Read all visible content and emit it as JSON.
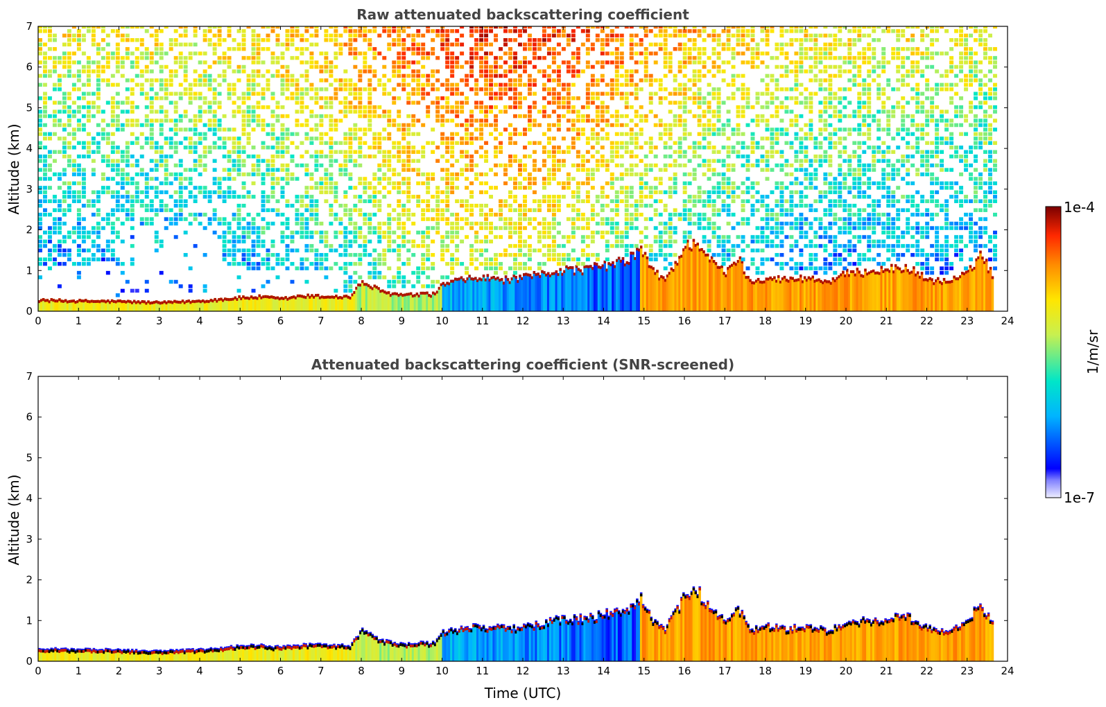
{
  "chart_data": [
    {
      "type": "heatmap",
      "title": "Raw attenuated backscattering coefficient",
      "xlabel": "",
      "ylabel": "Altitude (km)",
      "xlim": [
        0,
        24
      ],
      "ylim": [
        0,
        7
      ],
      "xticks": [
        "0",
        "1",
        "2",
        "3",
        "4",
        "5",
        "6",
        "7",
        "8",
        "9",
        "10",
        "11",
        "12",
        "13",
        "14",
        "15",
        "16",
        "17",
        "18",
        "19",
        "20",
        "21",
        "22",
        "23",
        "24"
      ],
      "yticks": [
        "0",
        "1",
        "2",
        "3",
        "4",
        "5",
        "6",
        "7"
      ],
      "data_end_hour": 23.65,
      "boundary_layer_top_km": [
        {
          "t": 0,
          "z": 0.3
        },
        {
          "t": 1,
          "z": 0.28
        },
        {
          "t": 2,
          "z": 0.27
        },
        {
          "t": 3,
          "z": 0.24
        },
        {
          "t": 4,
          "z": 0.28
        },
        {
          "t": 5,
          "z": 0.36
        },
        {
          "t": 5.5,
          "z": 0.38
        },
        {
          "t": 6,
          "z": 0.33
        },
        {
          "t": 6.5,
          "z": 0.4
        },
        {
          "t": 7.7,
          "z": 0.38
        },
        {
          "t": 8,
          "z": 0.75
        },
        {
          "t": 8.5,
          "z": 0.5
        },
        {
          "t": 9,
          "z": 0.42
        },
        {
          "t": 9.8,
          "z": 0.45
        },
        {
          "t": 10,
          "z": 0.7
        },
        {
          "t": 10.5,
          "z": 0.8
        },
        {
          "t": 11,
          "z": 0.85
        },
        {
          "t": 11.5,
          "z": 0.8
        },
        {
          "t": 12,
          "z": 0.85
        },
        {
          "t": 12.5,
          "z": 0.95
        },
        {
          "t": 13,
          "z": 1.05
        },
        {
          "t": 13.5,
          "z": 1.05
        },
        {
          "t": 14,
          "z": 1.15
        },
        {
          "t": 14.5,
          "z": 1.25
        },
        {
          "t": 14.9,
          "z": 1.55
        },
        {
          "t": 15.2,
          "z": 1.0
        },
        {
          "t": 15.5,
          "z": 0.8
        },
        {
          "t": 16,
          "z": 1.6
        },
        {
          "t": 16.3,
          "z": 1.75
        },
        {
          "t": 16.6,
          "z": 1.3
        },
        {
          "t": 17,
          "z": 0.95
        },
        {
          "t": 17.3,
          "z": 1.35
        },
        {
          "t": 17.6,
          "z": 0.75
        },
        {
          "t": 18,
          "z": 0.85
        },
        {
          "t": 18.5,
          "z": 0.8
        },
        {
          "t": 19,
          "z": 0.85
        },
        {
          "t": 19.5,
          "z": 0.75
        },
        {
          "t": 20,
          "z": 0.95
        },
        {
          "t": 20.5,
          "z": 1.0
        },
        {
          "t": 21,
          "z": 1.05
        },
        {
          "t": 21.5,
          "z": 1.1
        },
        {
          "t": 22,
          "z": 0.8
        },
        {
          "t": 22.5,
          "z": 0.75
        },
        {
          "t": 23,
          "z": 0.95
        },
        {
          "t": 23.3,
          "z": 1.45
        },
        {
          "t": 23.65,
          "z": 0.85
        }
      ]
    },
    {
      "type": "heatmap",
      "title": "Attenuated backscattering coefficient (SNR-screened)",
      "xlabel": "Time (UTC)",
      "ylabel": "Altitude (km)",
      "xlim": [
        0,
        24
      ],
      "ylim": [
        0,
        7
      ],
      "xticks": [
        "0",
        "1",
        "2",
        "3",
        "4",
        "5",
        "6",
        "7",
        "8",
        "9",
        "10",
        "11",
        "12",
        "13",
        "14",
        "15",
        "16",
        "17",
        "18",
        "19",
        "20",
        "21",
        "22",
        "23",
        "24"
      ],
      "yticks": [
        "0",
        "1",
        "2",
        "3",
        "4",
        "5",
        "6",
        "7"
      ],
      "data_end_hour": 23.65
    }
  ],
  "colorbar": {
    "label": "1/m/sr",
    "max_label": "1e-4",
    "min_label": "1e-7",
    "vmin": 1e-07,
    "vmax": 0.0001,
    "scale": "log",
    "colormap": [
      "#eeeeff",
      "#0000ff",
      "#00b4ff",
      "#00e6c8",
      "#c8f050",
      "#ffe600",
      "#ff8c00",
      "#ff2800",
      "#7a0000"
    ]
  }
}
